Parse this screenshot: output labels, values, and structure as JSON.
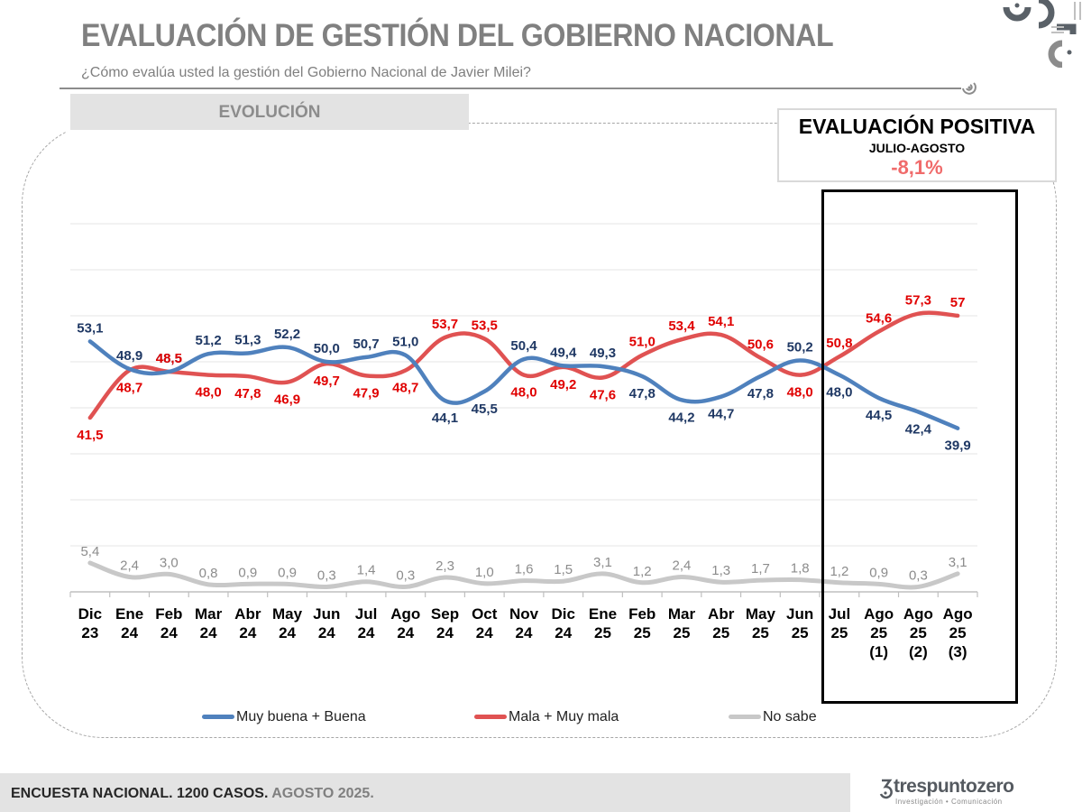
{
  "header": {
    "title": "EVALUACIÓN DE GESTIÓN DEL GOBIERNO NACIONAL",
    "subtitle": "¿Cómo evalúa usted la gestión del Gobierno Nacional de Javier Milei?",
    "section_label": "EVOLUCIÓN"
  },
  "kpi": {
    "title": "EVALUACIÓN POSITIVA",
    "period": "JULIO-AGOSTO",
    "value": "-8,1%",
    "value_color": "#f06b6b"
  },
  "footer": {
    "text_bold": "ENCUESTA NACIONAL. 1200 CASOS.",
    "text_light": " AGOSTO 2025."
  },
  "brand": {
    "name": "trespuntozero",
    "tagline": "Investigación • Comunicación"
  },
  "chart_data": {
    "type": "line",
    "title": "EVALUACIÓN DE GESTIÓN DEL GOBIERNO NACIONAL",
    "xlabel": "",
    "ylabel": "",
    "grid": true,
    "legend_position": "bottom",
    "highlighted_range": [
      "Jul 25",
      "Ago 25 (3)"
    ],
    "categories": [
      [
        "Dic",
        "23"
      ],
      [
        "Ene",
        "24"
      ],
      [
        "Feb",
        "24"
      ],
      [
        "Mar",
        "24"
      ],
      [
        "Abr",
        "24"
      ],
      [
        "May",
        "24"
      ],
      [
        "Jun",
        "24"
      ],
      [
        "Jul",
        "24"
      ],
      [
        "Ago",
        "24"
      ],
      [
        "Sep",
        "24"
      ],
      [
        "Oct",
        "24"
      ],
      [
        "Nov",
        "24"
      ],
      [
        "Dic",
        "24"
      ],
      [
        "Ene",
        "25"
      ],
      [
        "Feb",
        "25"
      ],
      [
        "Mar",
        "25"
      ],
      [
        "Abr",
        "25"
      ],
      [
        "May",
        "25"
      ],
      [
        "Jun",
        "25"
      ],
      [
        "Jul",
        "25"
      ],
      [
        "Ago",
        "25",
        "(1)"
      ],
      [
        "Ago",
        "25",
        "(2)"
      ],
      [
        "Ago",
        "25",
        "(3)"
      ]
    ],
    "series": [
      {
        "name": "Muy buena + Buena",
        "color": "#4f81bd",
        "label_color": "#1f3864",
        "values": [
          53.1,
          48.9,
          48.5,
          51.2,
          51.3,
          52.2,
          50.0,
          50.7,
          51.0,
          44.1,
          45.5,
          50.4,
          49.4,
          49.3,
          47.8,
          44.2,
          44.7,
          47.8,
          50.2,
          48.0,
          44.5,
          42.4,
          39.9
        ],
        "labels": [
          "53,1",
          "48,9",
          "48,5",
          "51,2",
          "51,3",
          "52,2",
          "50,0",
          "50,7",
          "51,0",
          "44,1",
          "45,5",
          "50,4",
          "49,4",
          "49,3",
          "47,8",
          "44,2",
          "44,7",
          "47,8",
          "50,2",
          "48,0",
          "44,5",
          "42,4",
          "39,9"
        ]
      },
      {
        "name": "Mala + Muy mala",
        "color": "#e05252",
        "label_color": "#e00000",
        "values": [
          41.5,
          48.7,
          48.5,
          48.0,
          47.8,
          46.9,
          49.7,
          47.9,
          48.7,
          53.7,
          53.5,
          48.0,
          49.2,
          47.6,
          51.0,
          53.4,
          54.1,
          50.6,
          48.0,
          50.8,
          54.6,
          57.3,
          57.0
        ],
        "labels": [
          "41,5",
          "48,7",
          "48,5",
          "48,0",
          "47,8",
          "46,9",
          "49,7",
          "47,9",
          "48,7",
          "53,7",
          "53,5",
          "48,0",
          "49,2",
          "47,6",
          "51,0",
          "53,4",
          "54,1",
          "50,6",
          "48,0",
          "50,8",
          "54,6",
          "57,3",
          "57"
        ]
      },
      {
        "name": "No sabe",
        "color": "#c8c8c8",
        "label_color": "#8c8c8c",
        "values": [
          5.4,
          2.4,
          3.0,
          0.8,
          0.9,
          0.9,
          0.3,
          1.4,
          0.3,
          2.3,
          1.0,
          1.6,
          1.5,
          3.1,
          1.2,
          2.4,
          1.3,
          1.7,
          1.8,
          1.2,
          0.9,
          0.3,
          3.1
        ],
        "labels": [
          "5,4",
          "2,4",
          "3,0",
          "0,8",
          "0,9",
          "0,9",
          "0,3",
          "1,4",
          "0,3",
          "2,3",
          "1,0",
          "1,6",
          "1,5",
          "3,1",
          "1,2",
          "2,4",
          "1,3",
          "1,7",
          "1,8",
          "1,2",
          "0,9",
          "0,3",
          "3,1"
        ]
      }
    ]
  }
}
